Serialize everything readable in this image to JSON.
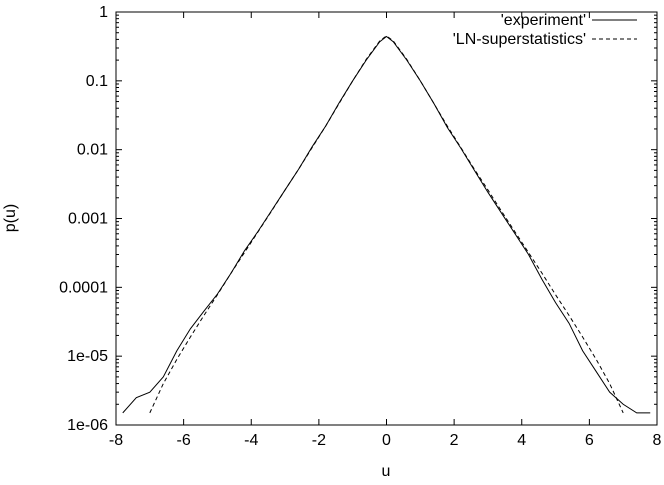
{
  "chart_data": {
    "type": "line",
    "xlabel": "u",
    "ylabel": "p(u)",
    "xlim": [
      -8,
      8
    ],
    "ylim": [
      1e-06,
      1
    ],
    "y_scale": "log",
    "x_ticks": [
      "-8",
      "-6",
      "-4",
      "-2",
      "0",
      "2",
      "4",
      "6",
      "8"
    ],
    "y_ticks": [
      "1e-06",
      "1e-05",
      "0.0001",
      "0.001",
      "0.01",
      "0.1",
      "1"
    ],
    "legend_position": "top-right",
    "series": [
      {
        "name": "'experiment'",
        "style": "solid",
        "color": "#000000",
        "x": [
          -7.8,
          -7.4,
          -7.0,
          -6.6,
          -6.2,
          -5.8,
          -5.4,
          -5.0,
          -4.6,
          -4.2,
          -3.8,
          -3.4,
          -3.0,
          -2.6,
          -2.2,
          -1.8,
          -1.4,
          -1.0,
          -0.6,
          -0.2,
          0.0,
          0.2,
          0.6,
          1.0,
          1.4,
          1.8,
          2.2,
          2.6,
          3.0,
          3.4,
          3.8,
          4.2,
          4.6,
          5.0,
          5.4,
          5.8,
          6.2,
          6.6,
          7.0,
          7.4,
          7.8
        ],
        "y": [
          1.5e-06,
          2.5e-06,
          3e-06,
          5e-06,
          1.2e-05,
          2.5e-05,
          4.5e-05,
          8e-05,
          0.00016,
          0.00034,
          0.00065,
          0.0013,
          0.0026,
          0.0052,
          0.011,
          0.022,
          0.048,
          0.1,
          0.2,
          0.37,
          0.44,
          0.37,
          0.2,
          0.1,
          0.047,
          0.021,
          0.0105,
          0.005,
          0.0024,
          0.0012,
          0.0006,
          0.0003,
          0.00013,
          6e-05,
          3e-05,
          1.2e-05,
          6e-06,
          3e-06,
          2e-06,
          1.5e-06,
          1.5e-06
        ]
      },
      {
        "name": "'LN-superstatistics'",
        "style": "dashed",
        "color": "#000000",
        "x": [
          -7.0,
          -6.6,
          -6.2,
          -5.8,
          -5.4,
          -5.0,
          -4.6,
          -4.2,
          -3.8,
          -3.4,
          -3.0,
          -2.6,
          -2.2,
          -1.8,
          -1.4,
          -1.0,
          -0.6,
          -0.2,
          0.0,
          0.2,
          0.6,
          1.0,
          1.4,
          1.8,
          2.2,
          2.6,
          3.0,
          3.4,
          3.8,
          4.2,
          4.6,
          5.0,
          5.4,
          5.8,
          6.2,
          6.6,
          7.0
        ],
        "y": [
          1.5e-06,
          4e-06,
          9e-06,
          1.9e-05,
          3.9e-05,
          7.8e-05,
          0.00016,
          0.00032,
          0.00064,
          0.00128,
          0.0026,
          0.0052,
          0.0107,
          0.022,
          0.047,
          0.1,
          0.205,
          0.38,
          0.45,
          0.38,
          0.205,
          0.1,
          0.047,
          0.022,
          0.0107,
          0.0052,
          0.0026,
          0.00128,
          0.00064,
          0.00032,
          0.00016,
          7.8e-05,
          3.9e-05,
          1.9e-05,
          9e-06,
          4e-06,
          1.5e-06
        ]
      }
    ]
  }
}
